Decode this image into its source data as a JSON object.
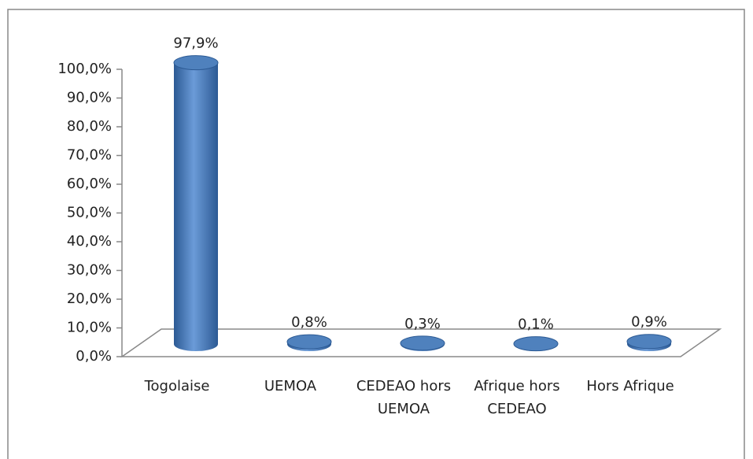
{
  "chart_data": {
    "type": "bar3d",
    "categories": [
      "Togolaise",
      "UEMOA",
      "CEDEAO hors UEMOA",
      "Afrique hors CEDEAO",
      "Hors Afrique"
    ],
    "values": [
      97.9,
      0.8,
      0.3,
      0.1,
      0.9
    ],
    "value_labels": [
      "97,9%",
      "0,8%",
      "0,3%",
      "0,1%",
      "0,9%"
    ],
    "color": "#4f81bd",
    "ylim": [
      0,
      100
    ],
    "yticks": [
      {
        "value": 0,
        "label": "0,0%"
      },
      {
        "value": 10,
        "label": "10,0%"
      },
      {
        "value": 20,
        "label": "20,0%"
      },
      {
        "value": 30,
        "label": "30,0%"
      },
      {
        "value": 40,
        "label": "40,0%"
      },
      {
        "value": 50,
        "label": "50,0%"
      },
      {
        "value": 60,
        "label": "60,0%"
      },
      {
        "value": 70,
        "label": "70,0%"
      },
      {
        "value": 80,
        "label": "80,0%"
      },
      {
        "value": 90,
        "label": "90,0%"
      },
      {
        "value": 100,
        "label": "100,0%"
      }
    ]
  }
}
